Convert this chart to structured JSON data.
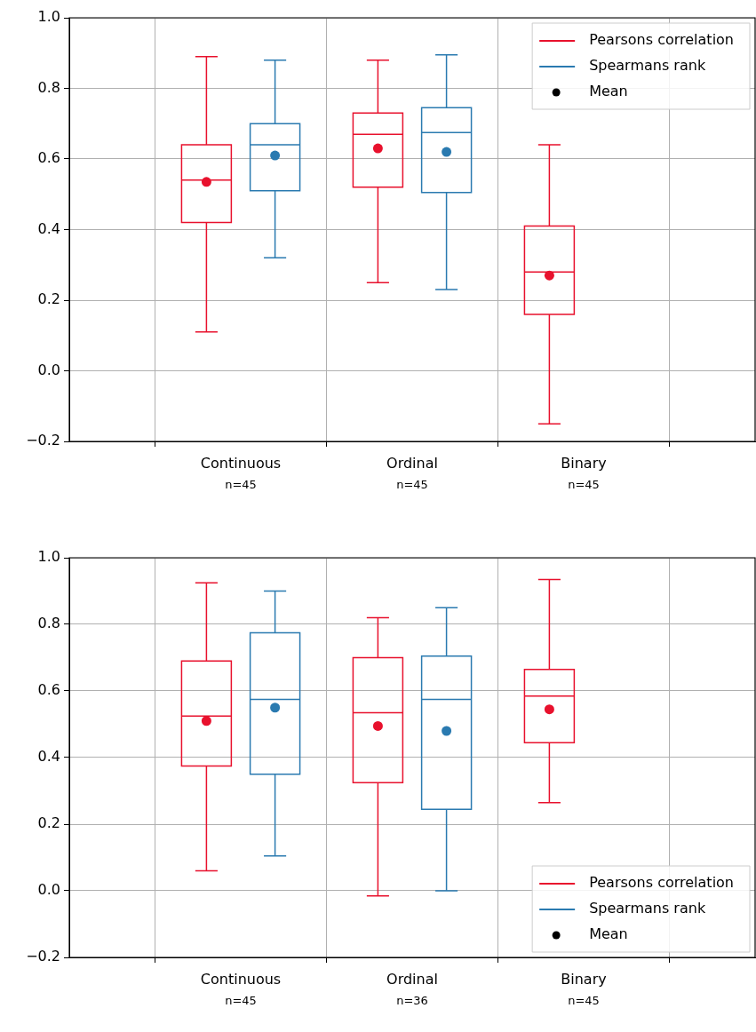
{
  "chart_data": [
    {
      "type": "box",
      "categories": [
        "Continuous\nn=45",
        "Ordinal\nn=45",
        "Binary\nn=45"
      ],
      "ylim": [
        -0.2,
        1.0
      ],
      "yticks": [
        {
          "value": -0.2,
          "label": "−0.2"
        },
        {
          "value": 0,
          "label": "0.0"
        },
        {
          "value": 0.2,
          "label": "0.2"
        },
        {
          "value": 0.4,
          "label": "0.4"
        },
        {
          "value": 0.6,
          "label": "0.6"
        },
        {
          "value": 0.8,
          "label": "0.8"
        },
        {
          "value": 1.0,
          "label": "1.0"
        }
      ],
      "grid": true,
      "legend": "top right",
      "series": [
        {
          "name": "Pearsons correlation",
          "color": "#e8112d",
          "boxes": [
            {
              "low": 0.11,
              "q1": 0.42,
              "median": 0.54,
              "q3": 0.64,
              "high": 0.89,
              "mean": 0.535
            },
            {
              "low": 0.25,
              "q1": 0.52,
              "median": 0.67,
              "q3": 0.73,
              "high": 0.88,
              "mean": 0.63
            },
            {
              "low": -0.15,
              "q1": 0.16,
              "median": 0.28,
              "q3": 0.41,
              "high": 0.64,
              "mean": 0.27
            }
          ]
        },
        {
          "name": "Spearmans rank",
          "color": "#2a7ab0",
          "boxes": [
            {
              "low": 0.32,
              "q1": 0.51,
              "median": 0.64,
              "q3": 0.7,
              "high": 0.88,
              "mean": 0.61
            },
            {
              "low": 0.23,
              "q1": 0.505,
              "median": 0.675,
              "q3": 0.745,
              "high": 0.895,
              "mean": 0.62
            },
            null
          ]
        },
        {
          "name": "Mean",
          "type": "scatter",
          "color": "#000000",
          "marker": "circle",
          "values": [
            null,
            null,
            null
          ]
        }
      ]
    },
    {
      "type": "box",
      "categories": [
        "Continuous\nn=45",
        "Ordinal\nn=36",
        "Binary\nn=45"
      ],
      "ylim": [
        -0.2,
        1.0
      ],
      "yticks": [
        {
          "value": -0.2,
          "label": "−0.2"
        },
        {
          "value": 0,
          "label": "0.0"
        },
        {
          "value": 0.2,
          "label": "0.2"
        },
        {
          "value": 0.4,
          "label": "0.4"
        },
        {
          "value": 0.6,
          "label": "0.6"
        },
        {
          "value": 0.8,
          "label": "0.8"
        },
        {
          "value": 1.0,
          "label": "1.0"
        }
      ],
      "grid": true,
      "legend": "bottom right",
      "series": [
        {
          "name": "Pearsons correlation",
          "color": "#e8112d",
          "boxes": [
            {
              "low": 0.06,
              "q1": 0.375,
              "median": 0.525,
              "q3": 0.69,
              "high": 0.925,
              "mean": 0.51
            },
            {
              "low": -0.015,
              "q1": 0.325,
              "median": 0.535,
              "q3": 0.7,
              "high": 0.82,
              "mean": 0.495
            },
            {
              "low": 0.265,
              "q1": 0.445,
              "median": 0.585,
              "q3": 0.665,
              "high": 0.935,
              "mean": 0.545
            }
          ]
        },
        {
          "name": "Spearmans rank",
          "color": "#2a7ab0",
          "boxes": [
            {
              "low": 0.105,
              "q1": 0.35,
              "median": 0.575,
              "q3": 0.775,
              "high": 0.9,
              "mean": 0.55
            },
            {
              "low": 0.0,
              "q1": 0.245,
              "median": 0.575,
              "q3": 0.705,
              "high": 0.85,
              "mean": 0.48
            },
            null
          ]
        },
        {
          "name": "Mean",
          "type": "scatter",
          "color": "#000000",
          "marker": "circle",
          "values": [
            null,
            null,
            null
          ]
        }
      ]
    }
  ]
}
